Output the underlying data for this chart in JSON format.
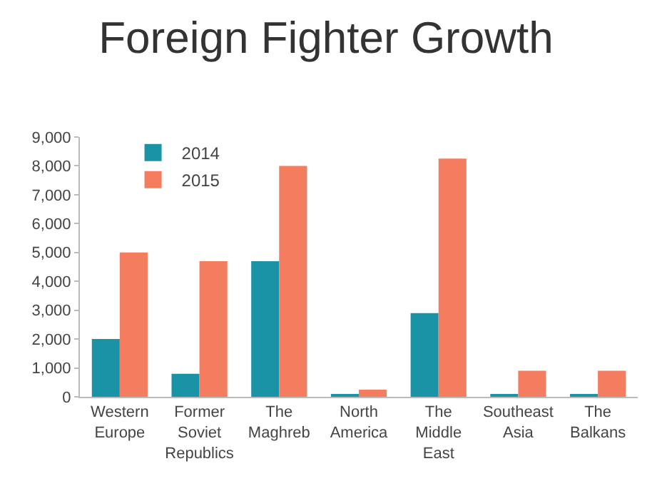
{
  "chart_data": {
    "type": "bar",
    "title": "Foreign Fighter Growth",
    "categories": [
      "Western Europe",
      "Former Soviet Republics",
      "The Maghreb",
      "North America",
      "The Middle East",
      "Southeast Asia",
      "The Balkans"
    ],
    "series": [
      {
        "name": "2014",
        "color": "#1a93a6",
        "values": [
          2000,
          800,
          4700,
          100,
          2900,
          50,
          100
        ]
      },
      {
        "name": "2015",
        "color": "#f47c5f",
        "values": [
          5000,
          4700,
          8000,
          250,
          8250,
          900,
          900
        ]
      }
    ],
    "ylim": [
      0,
      9000
    ],
    "yticks": [
      {
        "value": 0,
        "label": "0"
      },
      {
        "value": 1000,
        "label": "1,000"
      },
      {
        "value": 2000,
        "label": "2,000"
      },
      {
        "value": 3000,
        "label": "3,000"
      },
      {
        "value": 4000,
        "label": "4,000"
      },
      {
        "value": 5000,
        "label": "5,000"
      },
      {
        "value": 6000,
        "label": "6,000"
      },
      {
        "value": 7000,
        "label": "7,000"
      },
      {
        "value": 8000,
        "label": "8,000"
      },
      {
        "value": 9000,
        "label": "9,000"
      }
    ],
    "grid": false,
    "legend": "top left"
  }
}
